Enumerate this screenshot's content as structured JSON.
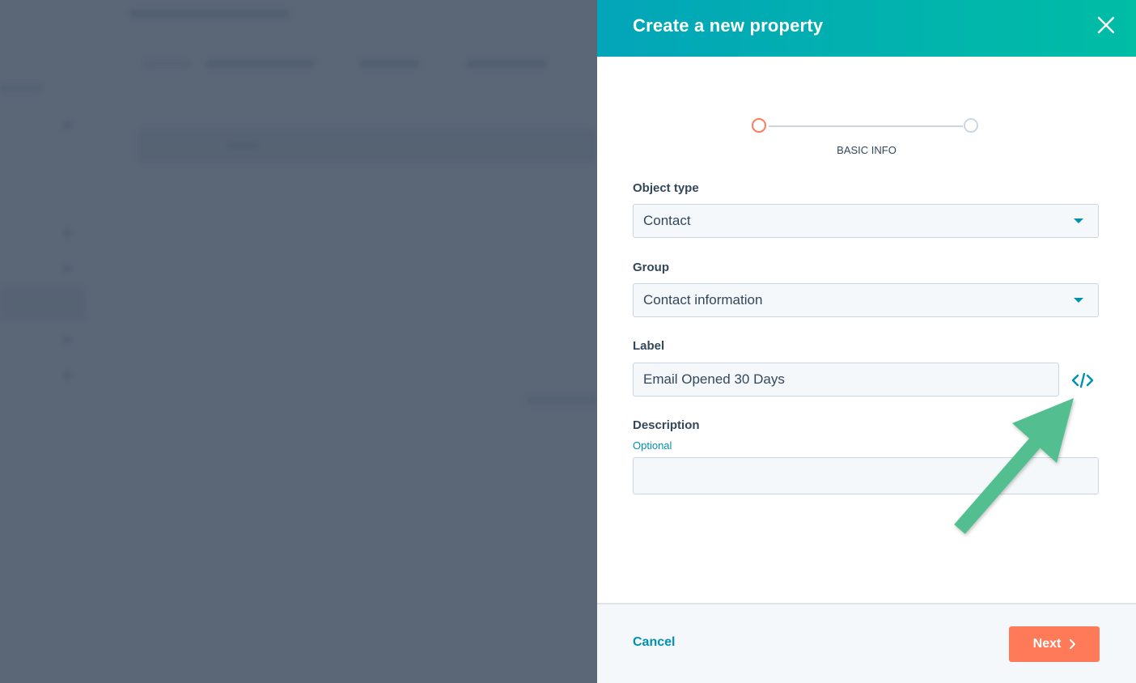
{
  "modal": {
    "title": "Create a new property",
    "close_icon": "close-icon",
    "stepper": {
      "current_step_label": "BASIC INFO",
      "active_color": "#ff7a59",
      "inactive_color": "#cbd6e2"
    },
    "fields": {
      "object_type": {
        "label": "Object type",
        "value": "Contact"
      },
      "group": {
        "label": "Group",
        "value": "Contact information"
      },
      "label": {
        "label": "Label",
        "value": "Email Opened 30 Days",
        "action_icon": "code-icon"
      },
      "description": {
        "label": "Description",
        "hint": "Optional",
        "value": ""
      }
    },
    "footer": {
      "cancel_label": "Cancel",
      "next_label": "Next"
    }
  },
  "colors": {
    "header_start": "#03a5b9",
    "header_end": "#00bda5",
    "primary_button": "#ff7a59",
    "link": "#0091ae",
    "annotation_arrow": "#52bf90"
  }
}
